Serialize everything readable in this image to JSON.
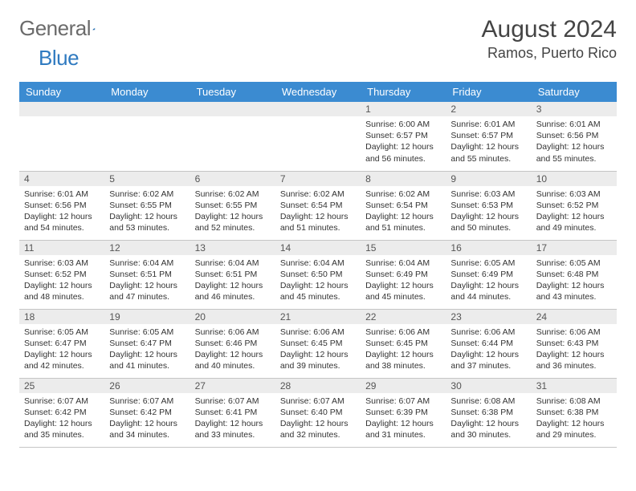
{
  "logo": {
    "word1": "General",
    "word2": "Blue"
  },
  "title": "August 2024",
  "location": "Ramos, Puerto Rico",
  "colors": {
    "header_bg": "#3b8bd1",
    "header_text": "#ffffff",
    "daynum_bg": "#ececec",
    "cell_border": "#c5c5c5",
    "body_text": "#333333",
    "logo_gray": "#6b6b6b",
    "logo_blue": "#2f7ac0"
  },
  "daynames": [
    "Sunday",
    "Monday",
    "Tuesday",
    "Wednesday",
    "Thursday",
    "Friday",
    "Saturday"
  ],
  "weeks": [
    [
      {
        "empty": true
      },
      {
        "empty": true
      },
      {
        "empty": true
      },
      {
        "empty": true
      },
      {
        "day": "1",
        "sunrise": "Sunrise: 6:00 AM",
        "sunset": "Sunset: 6:57 PM",
        "daylight": "Daylight: 12 hours and 56 minutes."
      },
      {
        "day": "2",
        "sunrise": "Sunrise: 6:01 AM",
        "sunset": "Sunset: 6:57 PM",
        "daylight": "Daylight: 12 hours and 55 minutes."
      },
      {
        "day": "3",
        "sunrise": "Sunrise: 6:01 AM",
        "sunset": "Sunset: 6:56 PM",
        "daylight": "Daylight: 12 hours and 55 minutes."
      }
    ],
    [
      {
        "day": "4",
        "sunrise": "Sunrise: 6:01 AM",
        "sunset": "Sunset: 6:56 PM",
        "daylight": "Daylight: 12 hours and 54 minutes."
      },
      {
        "day": "5",
        "sunrise": "Sunrise: 6:02 AM",
        "sunset": "Sunset: 6:55 PM",
        "daylight": "Daylight: 12 hours and 53 minutes."
      },
      {
        "day": "6",
        "sunrise": "Sunrise: 6:02 AM",
        "sunset": "Sunset: 6:55 PM",
        "daylight": "Daylight: 12 hours and 52 minutes."
      },
      {
        "day": "7",
        "sunrise": "Sunrise: 6:02 AM",
        "sunset": "Sunset: 6:54 PM",
        "daylight": "Daylight: 12 hours and 51 minutes."
      },
      {
        "day": "8",
        "sunrise": "Sunrise: 6:02 AM",
        "sunset": "Sunset: 6:54 PM",
        "daylight": "Daylight: 12 hours and 51 minutes."
      },
      {
        "day": "9",
        "sunrise": "Sunrise: 6:03 AM",
        "sunset": "Sunset: 6:53 PM",
        "daylight": "Daylight: 12 hours and 50 minutes."
      },
      {
        "day": "10",
        "sunrise": "Sunrise: 6:03 AM",
        "sunset": "Sunset: 6:52 PM",
        "daylight": "Daylight: 12 hours and 49 minutes."
      }
    ],
    [
      {
        "day": "11",
        "sunrise": "Sunrise: 6:03 AM",
        "sunset": "Sunset: 6:52 PM",
        "daylight": "Daylight: 12 hours and 48 minutes."
      },
      {
        "day": "12",
        "sunrise": "Sunrise: 6:04 AM",
        "sunset": "Sunset: 6:51 PM",
        "daylight": "Daylight: 12 hours and 47 minutes."
      },
      {
        "day": "13",
        "sunrise": "Sunrise: 6:04 AM",
        "sunset": "Sunset: 6:51 PM",
        "daylight": "Daylight: 12 hours and 46 minutes."
      },
      {
        "day": "14",
        "sunrise": "Sunrise: 6:04 AM",
        "sunset": "Sunset: 6:50 PM",
        "daylight": "Daylight: 12 hours and 45 minutes."
      },
      {
        "day": "15",
        "sunrise": "Sunrise: 6:04 AM",
        "sunset": "Sunset: 6:49 PM",
        "daylight": "Daylight: 12 hours and 45 minutes."
      },
      {
        "day": "16",
        "sunrise": "Sunrise: 6:05 AM",
        "sunset": "Sunset: 6:49 PM",
        "daylight": "Daylight: 12 hours and 44 minutes."
      },
      {
        "day": "17",
        "sunrise": "Sunrise: 6:05 AM",
        "sunset": "Sunset: 6:48 PM",
        "daylight": "Daylight: 12 hours and 43 minutes."
      }
    ],
    [
      {
        "day": "18",
        "sunrise": "Sunrise: 6:05 AM",
        "sunset": "Sunset: 6:47 PM",
        "daylight": "Daylight: 12 hours and 42 minutes."
      },
      {
        "day": "19",
        "sunrise": "Sunrise: 6:05 AM",
        "sunset": "Sunset: 6:47 PM",
        "daylight": "Daylight: 12 hours and 41 minutes."
      },
      {
        "day": "20",
        "sunrise": "Sunrise: 6:06 AM",
        "sunset": "Sunset: 6:46 PM",
        "daylight": "Daylight: 12 hours and 40 minutes."
      },
      {
        "day": "21",
        "sunrise": "Sunrise: 6:06 AM",
        "sunset": "Sunset: 6:45 PM",
        "daylight": "Daylight: 12 hours and 39 minutes."
      },
      {
        "day": "22",
        "sunrise": "Sunrise: 6:06 AM",
        "sunset": "Sunset: 6:45 PM",
        "daylight": "Daylight: 12 hours and 38 minutes."
      },
      {
        "day": "23",
        "sunrise": "Sunrise: 6:06 AM",
        "sunset": "Sunset: 6:44 PM",
        "daylight": "Daylight: 12 hours and 37 minutes."
      },
      {
        "day": "24",
        "sunrise": "Sunrise: 6:06 AM",
        "sunset": "Sunset: 6:43 PM",
        "daylight": "Daylight: 12 hours and 36 minutes."
      }
    ],
    [
      {
        "day": "25",
        "sunrise": "Sunrise: 6:07 AM",
        "sunset": "Sunset: 6:42 PM",
        "daylight": "Daylight: 12 hours and 35 minutes."
      },
      {
        "day": "26",
        "sunrise": "Sunrise: 6:07 AM",
        "sunset": "Sunset: 6:42 PM",
        "daylight": "Daylight: 12 hours and 34 minutes."
      },
      {
        "day": "27",
        "sunrise": "Sunrise: 6:07 AM",
        "sunset": "Sunset: 6:41 PM",
        "daylight": "Daylight: 12 hours and 33 minutes."
      },
      {
        "day": "28",
        "sunrise": "Sunrise: 6:07 AM",
        "sunset": "Sunset: 6:40 PM",
        "daylight": "Daylight: 12 hours and 32 minutes."
      },
      {
        "day": "29",
        "sunrise": "Sunrise: 6:07 AM",
        "sunset": "Sunset: 6:39 PM",
        "daylight": "Daylight: 12 hours and 31 minutes."
      },
      {
        "day": "30",
        "sunrise": "Sunrise: 6:08 AM",
        "sunset": "Sunset: 6:38 PM",
        "daylight": "Daylight: 12 hours and 30 minutes."
      },
      {
        "day": "31",
        "sunrise": "Sunrise: 6:08 AM",
        "sunset": "Sunset: 6:38 PM",
        "daylight": "Daylight: 12 hours and 29 minutes."
      }
    ]
  ]
}
